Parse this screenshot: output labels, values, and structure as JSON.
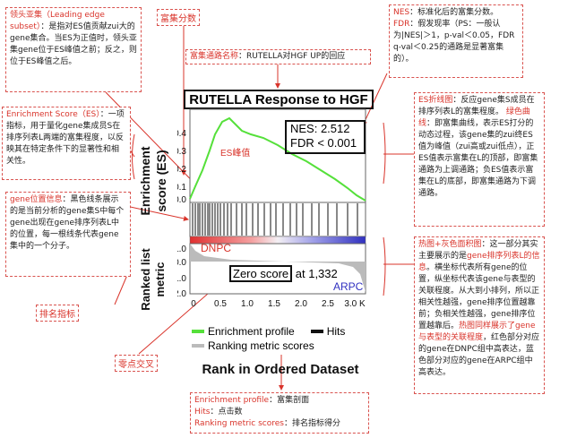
{
  "title": "RUTELLA Response to HGF UP",
  "stats": {
    "nes": "NES: 2.512",
    "fdr": "FDR < 0.001"
  },
  "axes": {
    "es_ylabel": "Enrichment score (ES)",
    "rank_ylabel": "Ranked list metric",
    "xlabel": "Rank in Ordered Dataset",
    "es_ticks": [
      "0.4",
      "0.3",
      "0.2",
      "0.1",
      "0.0"
    ],
    "rank_ticks": [
      "1.0",
      "0.0",
      "-1.0",
      "-2.0"
    ],
    "x_ticks": [
      "0",
      "0.5",
      "1.0",
      "1.5",
      "2.0",
      "2.5",
      "3.0 K"
    ]
  },
  "plot_labels": {
    "es_peak": "ES峰值",
    "dnpc": "DNPC",
    "arpc": "ARPC",
    "zero_score": "Zero score",
    "zero_score_value": "at 1,332"
  },
  "legend": {
    "enrichment": "Enrichment profile",
    "hits": "Hits",
    "ranking": "Ranking metric scores"
  },
  "labels": {
    "enrich_score": "富集分数",
    "rank_metric": "排名指标",
    "zero_cross": "零点交叉"
  },
  "annotations": {
    "leading_edge": {
      "head": "领头亚集（Leading edge subset）",
      "body": "：是指对ES值贡献zui大的gene集合。当ES为正值时，领头亚集gene位于ES峰值之前；反之，则位于ES峰值之后。"
    },
    "es_def": {
      "head": "Enrichment Score（ES）",
      "body": "：一项指标，用于量化gene集成员S在排序列表L两端的富集程度，以反映其在特定条件下的显著性和相关性。"
    },
    "gene_pos": {
      "head": "gene位置信息",
      "body": "：黑色线条展示的是当前分析的gene集S中每个gene出现在gene排序列表L中的位置，每一根线条代表gene集中的一个分子。"
    },
    "pathway": {
      "head": "富集通路名称",
      "body": "：RUTELLA对HGF UP的回应"
    },
    "nes": {
      "head": "NES",
      "body": "：标准化后的富集分数。"
    },
    "fdr": {
      "head": "FDR",
      "body": "：假发现率（PS：一般认为|NES|＞1，p-val＜0.05，FDR q-val＜0.25的通路是显著富集的）。"
    },
    "es_line": {
      "head": "ES折线图",
      "body": "：反应gene集S成员在排序列表L的富集程度。",
      "head2": "绿色曲线",
      "body2": "：即富集曲线，表示ES打分的动态过程，该gene集的zui终ES值为峰值（zui高或zui低点），正ES值表示富集在L的顶部，即富集通路为上调通路；负ES值表示富集在L的底部，即富集通路为下调通路。"
    },
    "heatmap": {
      "head": "热图+灰色面积图",
      "body": "：这一部分其实主要展示的是",
      "head2": "gene排序列表L的信息",
      "body2": "。横坐标代表所有gene的位置，纵坐标代表该gene与表型的关联程度。从大到小排列，所以正相关性越强，gene排序位置越靠前；负相关性越强，gene排序位置越靠后。",
      "head3": "热图同样展示了gene与表型的关联程度",
      "body3": "，红色部分对应的gene在DNPC组中高表达，蓝色部分对应的gene在ARPC组中高表达。"
    },
    "legend_note": {
      "l1h": "Enrichment profile",
      "l1b": "：富集剖面",
      "l2h": "Hits",
      "l2b": "：点击数",
      "l3h": "Ranking metric scores",
      "l3b": "：排名指标得分"
    }
  },
  "colors": {
    "green": "#55e03a",
    "red": "#e03030",
    "blue": "#3030c0",
    "gray": "#bbbbbb"
  }
}
